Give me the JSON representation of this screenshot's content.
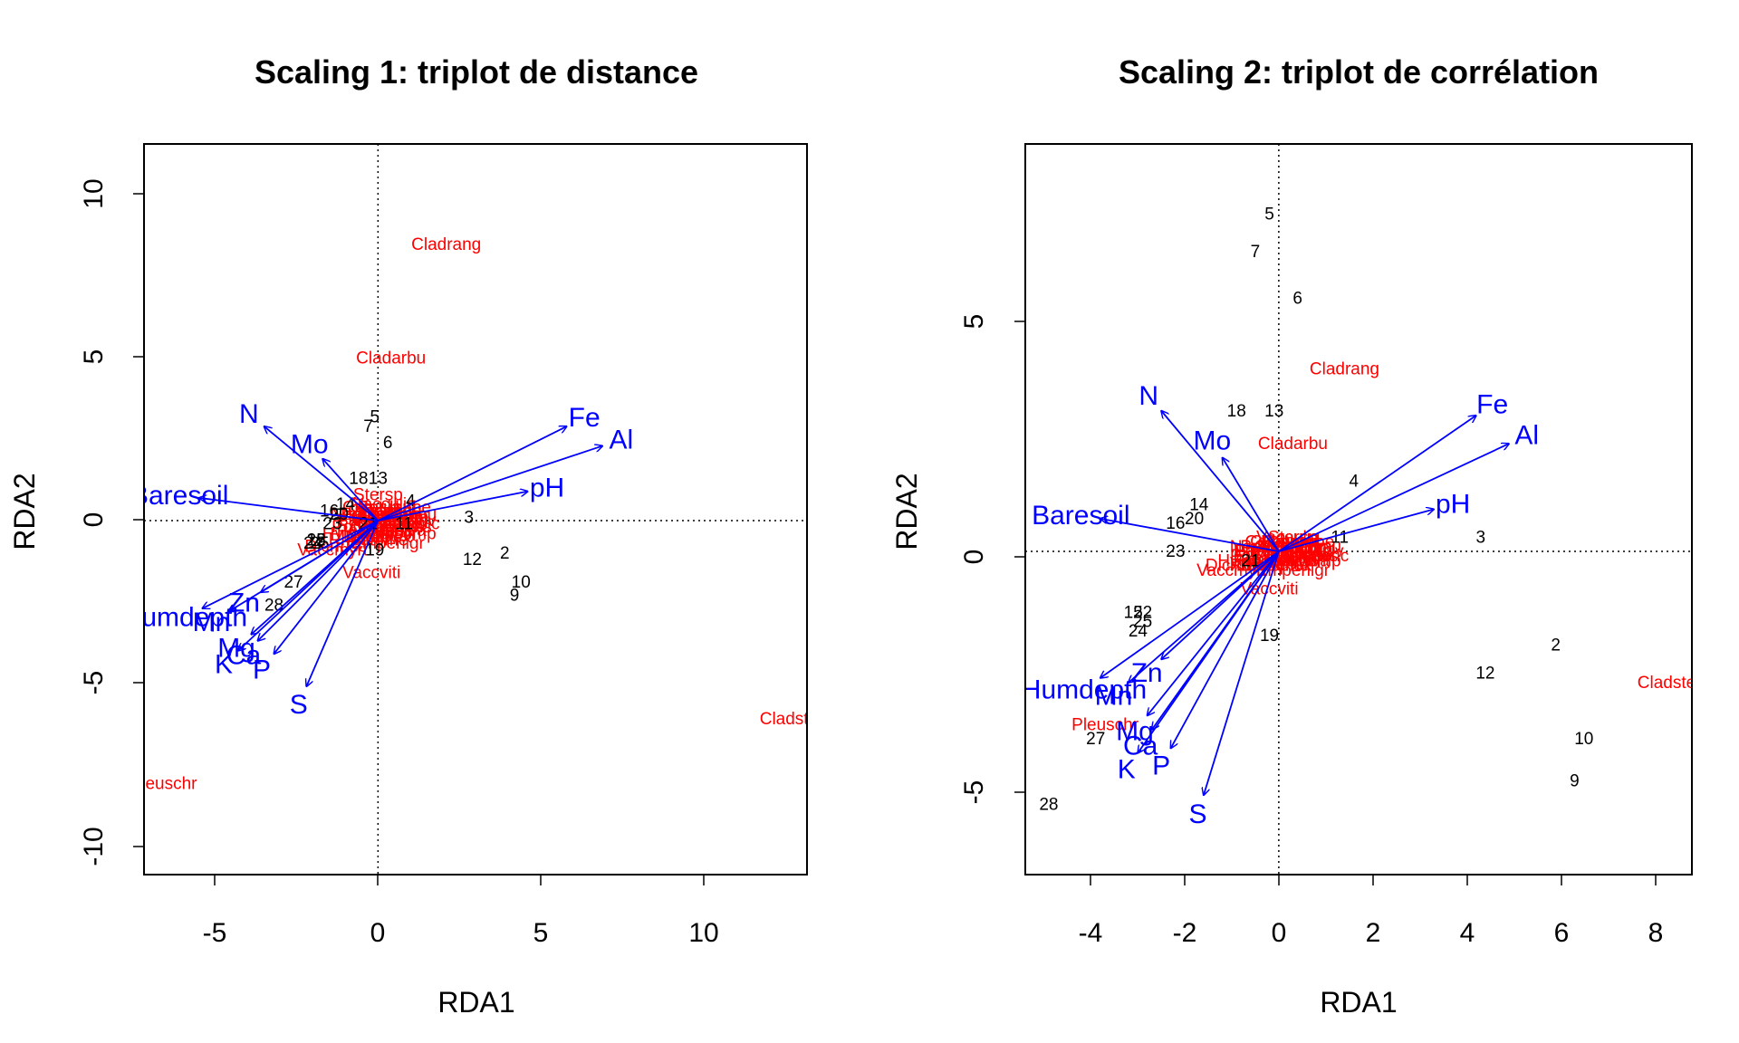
{
  "chart_data": [
    {
      "type": "scatter",
      "title": "Scaling 1: triplot de distance",
      "xlabel": "RDA1",
      "ylabel": "RDA2",
      "xlim": [
        -7.2,
        13.2
      ],
      "ylim": [
        -10.9,
        11.6
      ],
      "xticks": [
        "-5",
        "0",
        "5",
        "10"
      ],
      "yticks": [
        "-10",
        "-5",
        "0",
        "5",
        "10"
      ],
      "colors": {
        "sites": "#000000",
        "species": "#ff0000",
        "env": "#0000ff"
      },
      "sites": [
        {
          "label": "5",
          "x": -0.1,
          "y": 3.2
        },
        {
          "label": "7",
          "x": -0.3,
          "y": 2.9
        },
        {
          "label": "6",
          "x": 0.3,
          "y": 2.4
        },
        {
          "label": "18",
          "x": -0.6,
          "y": 1.3
        },
        {
          "label": "13",
          "x": 0.0,
          "y": 1.3
        },
        {
          "label": "14",
          "x": -1.0,
          "y": 0.5
        },
        {
          "label": "16",
          "x": -1.5,
          "y": 0.3
        },
        {
          "label": "20",
          "x": -1.2,
          "y": 0.2
        },
        {
          "label": "4",
          "x": 1.0,
          "y": 0.6
        },
        {
          "label": "3",
          "x": 2.8,
          "y": 0.1
        },
        {
          "label": "23",
          "x": -1.4,
          "y": -0.1
        },
        {
          "label": "21",
          "x": -0.3,
          "y": -0.1
        },
        {
          "label": "11",
          "x": 0.8,
          "y": -0.1
        },
        {
          "label": "15",
          "x": -1.9,
          "y": -0.6
        },
        {
          "label": "22",
          "x": -1.9,
          "y": -0.6
        },
        {
          "label": "24",
          "x": -2.0,
          "y": -0.7
        },
        {
          "label": "25",
          "x": -1.8,
          "y": -0.7
        },
        {
          "label": "19",
          "x": -0.1,
          "y": -0.9
        },
        {
          "label": "2",
          "x": 3.9,
          "y": -1.0
        },
        {
          "label": "12",
          "x": 2.9,
          "y": -1.2
        },
        {
          "label": "10",
          "x": 4.4,
          "y": -1.9
        },
        {
          "label": "9",
          "x": 4.2,
          "y": -2.3
        },
        {
          "label": "27",
          "x": -2.6,
          "y": -1.9
        },
        {
          "label": "28",
          "x": -3.2,
          "y": -2.6
        }
      ],
      "species": [
        {
          "label": "Cladrang",
          "x": 2.1,
          "y": 8.5
        },
        {
          "label": "Cladarbu",
          "x": 0.4,
          "y": 5.0
        },
        {
          "label": "Cladstel",
          "x": 12.7,
          "y": -6.1
        },
        {
          "label": "Pleuschr",
          "x": -6.6,
          "y": -8.1
        },
        {
          "label": "Stersp",
          "x": 0.0,
          "y": 0.8
        },
        {
          "label": "Vaccviti",
          "x": -0.2,
          "y": -1.6
        },
        {
          "label": "Dicrfusc",
          "x": -1.3,
          "y": -0.8
        },
        {
          "label": "Vaccmyrt",
          "x": -1.4,
          "y": -0.9
        },
        {
          "label": "Empenigr",
          "x": 0.3,
          "y": -0.7
        },
        {
          "label": "Callvulg",
          "x": 0.6,
          "y": 0.0
        },
        {
          "label": "Cladunci",
          "x": 0.1,
          "y": 0.3
        },
        {
          "label": "Cladcorn",
          "x": 0.5,
          "y": 0.1
        },
        {
          "label": "Cladgrac",
          "x": 0.2,
          "y": -0.2
        },
        {
          "label": "Cladfimb",
          "x": 0.4,
          "y": -0.1
        },
        {
          "label": "Cladcris",
          "x": 0.7,
          "y": -0.2
        },
        {
          "label": "Cladchlo",
          "x": 0.3,
          "y": 0.2
        },
        {
          "label": "Cladbotr",
          "x": 0.1,
          "y": -0.3
        },
        {
          "label": "Cladamau",
          "x": 0.6,
          "y": 0.2
        },
        {
          "label": "Cladcerv",
          "x": 0.2,
          "y": 0.1
        },
        {
          "label": "Cetreric",
          "x": 0.4,
          "y": 0.3
        },
        {
          "label": "Cetrisla",
          "x": -0.2,
          "y": 0.4
        },
        {
          "label": "Flavniva",
          "x": 0.5,
          "y": -0.3
        },
        {
          "label": "Nepharct",
          "x": -0.4,
          "y": 0.2
        },
        {
          "label": "Peltapht",
          "x": -0.3,
          "y": -0.3
        },
        {
          "label": "Polyjuni",
          "x": -0.5,
          "y": -0.2
        },
        {
          "label": "Polypili",
          "x": 0.3,
          "y": -0.4
        },
        {
          "label": "Ptilcili",
          "x": -0.6,
          "y": 0.0
        },
        {
          "label": "Barbhatc",
          "x": -0.2,
          "y": 0.0
        },
        {
          "label": "Dicrsp",
          "x": -0.4,
          "y": -0.5
        },
        {
          "label": "Descflex",
          "x": 0.0,
          "y": -0.5
        },
        {
          "label": "Betupube",
          "x": 0.5,
          "y": 0.4
        },
        {
          "label": "Pinusylv",
          "x": 0.8,
          "y": 0.0
        },
        {
          "label": "Vacculig",
          "x": 0.2,
          "y": 0.5
        },
        {
          "label": "Hylosple",
          "x": -0.7,
          "y": -0.4
        },
        {
          "label": "Pohlnuta",
          "x": -0.1,
          "y": 0.2
        },
        {
          "label": "Icmaeric",
          "x": 0.9,
          "y": -0.1
        },
        {
          "label": "Diphcomp",
          "x": 0.6,
          "y": -0.4
        },
        {
          "label": "Rhodtome",
          "x": -0.3,
          "y": -0.6
        }
      ],
      "env": [
        {
          "label": "N",
          "x": -3.5,
          "y": 2.9
        },
        {
          "label": "Mo",
          "x": -1.7,
          "y": 1.9
        },
        {
          "label": "Fe",
          "x": 5.8,
          "y": 2.9
        },
        {
          "label": "Al",
          "x": 6.9,
          "y": 2.3
        },
        {
          "label": "pH",
          "x": 4.6,
          "y": 0.9
        },
        {
          "label": "Baresoil",
          "x": -5.5,
          "y": 0.7
        },
        {
          "label": "Humdepth",
          "x": -5.4,
          "y": -2.7
        },
        {
          "label": "Mn",
          "x": -4.6,
          "y": -2.8
        },
        {
          "label": "Zn",
          "x": -3.6,
          "y": -2.2
        },
        {
          "label": "Mg",
          "x": -3.9,
          "y": -3.5
        },
        {
          "label": "Ca",
          "x": -3.7,
          "y": -3.7
        },
        {
          "label": "K",
          "x": -4.3,
          "y": -4.0
        },
        {
          "label": "P",
          "x": -3.2,
          "y": -4.1
        },
        {
          "label": "S",
          "x": -2.2,
          "y": -5.1
        }
      ],
      "env_label_text": {
        "Baresoil": "Baresoil",
        "Humdepth": "Humdepth",
        "Mn": "Mn"
      },
      "grid": false,
      "origin_lines": true
    },
    {
      "type": "scatter",
      "title": "Scaling 2: triplot de corrélation",
      "xlabel": "RDA1",
      "ylabel": "RDA2",
      "xlim": [
        -5.4,
        8.8
      ],
      "ylim": [
        -6.9,
        8.7
      ],
      "xticks": [
        "-4",
        "-2",
        "0",
        "2",
        "4",
        "6",
        "8"
      ],
      "yticks": [
        "-5",
        "0",
        "5"
      ],
      "colors": {
        "sites": "#000000",
        "species": "#ff0000",
        "env": "#0000ff"
      },
      "sites": [
        {
          "label": "5",
          "x": -0.2,
          "y": 7.2
        },
        {
          "label": "7",
          "x": -0.5,
          "y": 6.4
        },
        {
          "label": "6",
          "x": 0.4,
          "y": 5.4
        },
        {
          "label": "18",
          "x": -0.9,
          "y": 3.0
        },
        {
          "label": "13",
          "x": -0.1,
          "y": 3.0
        },
        {
          "label": "4",
          "x": 1.6,
          "y": 1.5
        },
        {
          "label": "14",
          "x": -1.7,
          "y": 1.0
        },
        {
          "label": "16",
          "x": -2.2,
          "y": 0.6
        },
        {
          "label": "20",
          "x": -1.8,
          "y": 0.7
        },
        {
          "label": "3",
          "x": 4.3,
          "y": 0.3
        },
        {
          "label": "11",
          "x": 1.3,
          "y": 0.3
        },
        {
          "label": "23",
          "x": -2.2,
          "y": 0.0
        },
        {
          "label": "21",
          "x": -0.6,
          "y": -0.2
        },
        {
          "label": "15",
          "x": -3.1,
          "y": -1.3
        },
        {
          "label": "22",
          "x": -2.9,
          "y": -1.3
        },
        {
          "label": "25",
          "x": -2.9,
          "y": -1.5
        },
        {
          "label": "24",
          "x": -3.0,
          "y": -1.7
        },
        {
          "label": "19",
          "x": -0.2,
          "y": -1.8
        },
        {
          "label": "2",
          "x": 5.9,
          "y": -2.0
        },
        {
          "label": "12",
          "x": 4.4,
          "y": -2.6
        },
        {
          "label": "10",
          "x": 6.5,
          "y": -4.0
        },
        {
          "label": "9",
          "x": 6.3,
          "y": -4.9
        },
        {
          "label": "27",
          "x": -3.9,
          "y": -4.0
        },
        {
          "label": "28",
          "x": -4.9,
          "y": -5.4
        }
      ],
      "species": [
        {
          "label": "Cladrang",
          "x": 1.4,
          "y": 3.9
        },
        {
          "label": "Cladarbu",
          "x": 0.3,
          "y": 2.3
        },
        {
          "label": "Cladstel",
          "x": 8.3,
          "y": -2.8
        },
        {
          "label": "Pleuschr",
          "x": -3.7,
          "y": -3.7
        },
        {
          "label": "Stersp",
          "x": 0.3,
          "y": 0.3
        },
        {
          "label": "Vaccviti",
          "x": -0.2,
          "y": -0.8
        },
        {
          "label": "Dicrfusc",
          "x": -0.9,
          "y": -0.3
        },
        {
          "label": "Vaccmyrt",
          "x": -1.0,
          "y": -0.4
        },
        {
          "label": "Empenigr",
          "x": 0.3,
          "y": -0.4
        },
        {
          "label": "Callvulg",
          "x": 0.5,
          "y": 0.0
        },
        {
          "label": "Cladunci",
          "x": 0.1,
          "y": 0.2
        },
        {
          "label": "Cladcorn",
          "x": 0.4,
          "y": 0.1
        },
        {
          "label": "Cladgrac",
          "x": 0.2,
          "y": -0.1
        },
        {
          "label": "Cladfimb",
          "x": 0.4,
          "y": -0.1
        },
        {
          "label": "Cladcris",
          "x": 0.6,
          "y": -0.1
        },
        {
          "label": "Cladchlo",
          "x": 0.3,
          "y": 0.1
        },
        {
          "label": "Cladbotr",
          "x": 0.1,
          "y": -0.2
        },
        {
          "label": "Cladamau",
          "x": 0.5,
          "y": 0.1
        },
        {
          "label": "Cladcerv",
          "x": 0.2,
          "y": 0.1
        },
        {
          "label": "Cetreric",
          "x": 0.3,
          "y": 0.2
        },
        {
          "label": "Cetrisla",
          "x": -0.1,
          "y": 0.2
        },
        {
          "label": "Flavniva",
          "x": 0.4,
          "y": -0.2
        },
        {
          "label": "Nepharct",
          "x": -0.3,
          "y": 0.1
        },
        {
          "label": "Peltapht",
          "x": -0.3,
          "y": -0.2
        },
        {
          "label": "Polyjuni",
          "x": -0.4,
          "y": -0.1
        },
        {
          "label": "Polypili",
          "x": 0.3,
          "y": -0.2
        },
        {
          "label": "Ptilcili",
          "x": -0.5,
          "y": 0.0
        },
        {
          "label": "Barbhatc",
          "x": -0.2,
          "y": 0.0
        },
        {
          "label": "Dicrsp",
          "x": -0.3,
          "y": -0.3
        },
        {
          "label": "Descflex",
          "x": 0.0,
          "y": -0.3
        },
        {
          "label": "Betupube",
          "x": 0.4,
          "y": 0.2
        },
        {
          "label": "Pinusylv",
          "x": 0.7,
          "y": 0.0
        },
        {
          "label": "Vacculig",
          "x": 0.2,
          "y": 0.3
        },
        {
          "label": "Hylosple",
          "x": -0.6,
          "y": -0.2
        },
        {
          "label": "Pohlnuta",
          "x": -0.1,
          "y": 0.1
        },
        {
          "label": "Icmaeric",
          "x": 0.8,
          "y": -0.1
        },
        {
          "label": "Diphcomp",
          "x": 0.5,
          "y": -0.2
        },
        {
          "label": "Rhodtome",
          "x": -0.2,
          "y": -0.3
        }
      ],
      "env": [
        {
          "label": "N",
          "x": -2.5,
          "y": 3.0
        },
        {
          "label": "Mo",
          "x": -1.2,
          "y": 2.0
        },
        {
          "label": "Fe",
          "x": 4.2,
          "y": 2.9
        },
        {
          "label": "Al",
          "x": 4.9,
          "y": 2.3
        },
        {
          "label": "pH",
          "x": 3.3,
          "y": 0.9
        },
        {
          "label": "Baresoil",
          "x": -3.8,
          "y": 0.7
        },
        {
          "label": "Humdepth",
          "x": -3.8,
          "y": -2.7
        },
        {
          "label": "Mn",
          "x": -3.2,
          "y": -2.8
        },
        {
          "label": "Zn",
          "x": -2.5,
          "y": -2.3
        },
        {
          "label": "Mg",
          "x": -2.8,
          "y": -3.5
        },
        {
          "label": "Ca",
          "x": -2.7,
          "y": -3.8
        },
        {
          "label": "K",
          "x": -3.0,
          "y": -4.3
        },
        {
          "label": "P",
          "x": -2.3,
          "y": -4.2
        },
        {
          "label": "S",
          "x": -1.6,
          "y": -5.2
        }
      ],
      "env_label_text": {
        "Baresoil": "Baresoil",
        "Humdepth": "Humdepth",
        "Mn": "Mn"
      },
      "grid": false,
      "origin_lines": true
    }
  ]
}
